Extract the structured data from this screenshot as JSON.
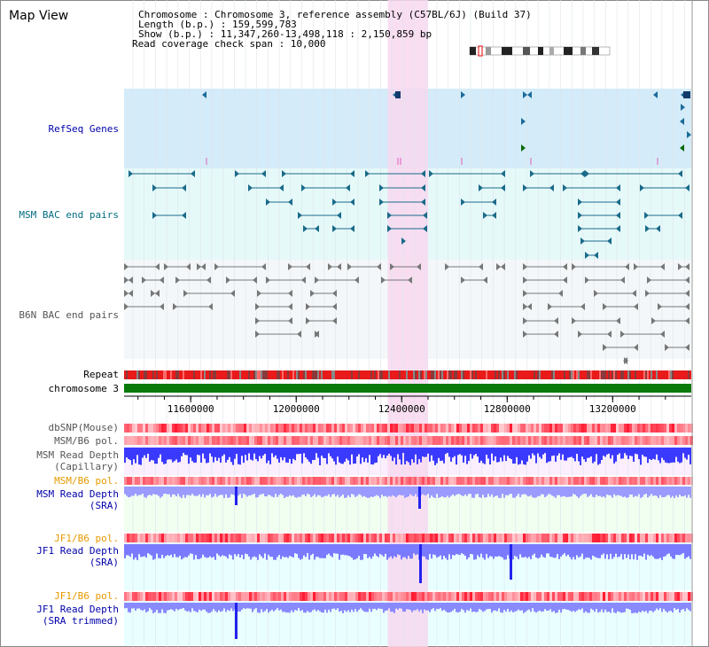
{
  "title": "Map View",
  "info": {
    "line1": "Chromosome    : Chromosome 3, reference assembly (C57BL/6J) (Build 37)",
    "line2": "Length (b.p.) : 159,599,783",
    "line3": "Show (b.p.)  : 11,347,260-13,498,118 : 2,150,859 bp",
    "line4": "Read coverage check span : 10,000"
  },
  "tracks": {
    "refseq": "RefSeq Genes",
    "msm_bac": "MSM BAC end pairs",
    "b6n_bac": "B6N BAC end pairs",
    "repeat": "Repeat",
    "chromosome": "chromosome 3",
    "dbsnp": "dbSNP(Mouse)",
    "msm_b6_pol": "MSM/B6 pol.",
    "msm_depth_cap_1": "MSM Read Depth",
    "msm_depth_cap_2": "(Capillary)",
    "msm_b6_pol2": "MSM/B6 pol.",
    "msm_depth_sra_1": "MSM Read Depth",
    "msm_depth_sra_2": "(SRA)",
    "jf1_b6_pol": "JF1/B6 pol.",
    "jf1_depth_sra_1": "JF1 Read Depth",
    "jf1_depth_sra_2": "(SRA)",
    "jf1_b6_pol2": "JF1/B6 pol.",
    "jf1_depth_trim_1": "JF1 Read Depth",
    "jf1_depth_trim_2": "(SRA trimmed)"
  },
  "axis": {
    "ticks": [
      "11600000",
      "12000000",
      "12400000",
      "12800000",
      "13200000"
    ],
    "tick_values": [
      11600000,
      12000000,
      12400000,
      12800000,
      13200000
    ],
    "range": [
      11347260,
      13498118
    ]
  },
  "highlight": {
    "range": [
      12347000,
      12500000
    ]
  },
  "colors": {
    "refseq_bg": "#d4ecf9",
    "msm_bac_bg": "#e6f9f9",
    "b6n_bac_bg": "#f4f7f9",
    "highlight": "#f8d8f0",
    "label_blue": "#0000aa",
    "label_teal": "#006d80",
    "label_gray": "#555555",
    "label_orange": "#e69a00",
    "chromosome": "#0a7a0a",
    "depth_blue": "#3333ff"
  }
}
